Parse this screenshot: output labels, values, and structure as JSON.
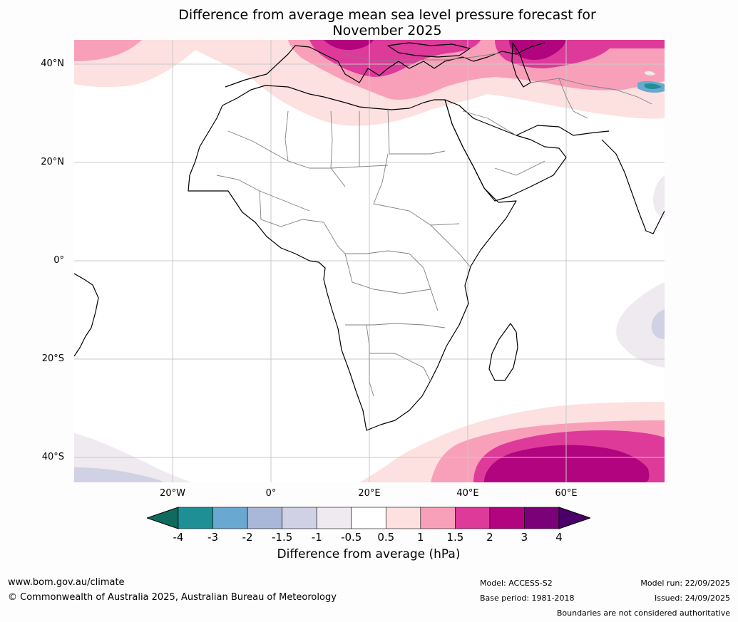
{
  "title": {
    "line1": "Difference from average mean sea level pressure forecast for",
    "line2": "November 2025"
  },
  "map": {
    "lat_labels": [
      "40°N",
      "20°N",
      "0°",
      "20°S",
      "40°S"
    ],
    "lon_labels": [
      "20°W",
      "0°",
      "20°E",
      "40°E",
      "60°E"
    ],
    "anomaly_regions": [
      {
        "region": "Mediterranean / southern Europe",
        "category": "1.5 to 3"
      },
      {
        "region": "Caspian / Central Asia",
        "category": "1.5 to 3"
      },
      {
        "region": "North Atlantic (northwest corner)",
        "category": "1 to 1.5"
      },
      {
        "region": "Arabian Peninsula north / Middle East",
        "category": "0.5 to 1.5"
      },
      {
        "region": "Southern Ocean south of Africa",
        "category": "0.5 to 3"
      },
      {
        "region": "Southwest Indian Ocean",
        "category": "-1.5 to -0.5"
      },
      {
        "region": "South Atlantic (southwest corner)",
        "category": "-1.5 to -0.5"
      },
      {
        "region": "Himalaya",
        "category": "-4 to -2"
      }
    ]
  },
  "colorbar": {
    "ticks": [
      "-4",
      "-3",
      "-2",
      "-1.5",
      "-1",
      "-0.5",
      "0.5",
      "1",
      "1.5",
      "2",
      "3",
      "4"
    ],
    "colors": [
      "#0f6b5e",
      "#1f8f96",
      "#69a8d0",
      "#a9b8d8",
      "#d0d1e4",
      "#efe9f0",
      "#ffffff",
      "#fde0e0",
      "#f8a0b9",
      "#dd3a9a",
      "#b2047e",
      "#7a0177",
      "#4a0068"
    ],
    "label": "Difference from average (hPa)"
  },
  "footer": {
    "website": "www.bom.gov.au/climate",
    "copyright": "© Commonwealth of Australia 2025, Australian Bureau of Meteorology",
    "model": "Model: ACCESS-S2",
    "base_period": "Base period: 1981-2018",
    "model_run": "Model run: 22/09/2025",
    "issued": "Issued: 24/09/2025",
    "disclaimer": "Boundaries are not considered authoritative"
  }
}
